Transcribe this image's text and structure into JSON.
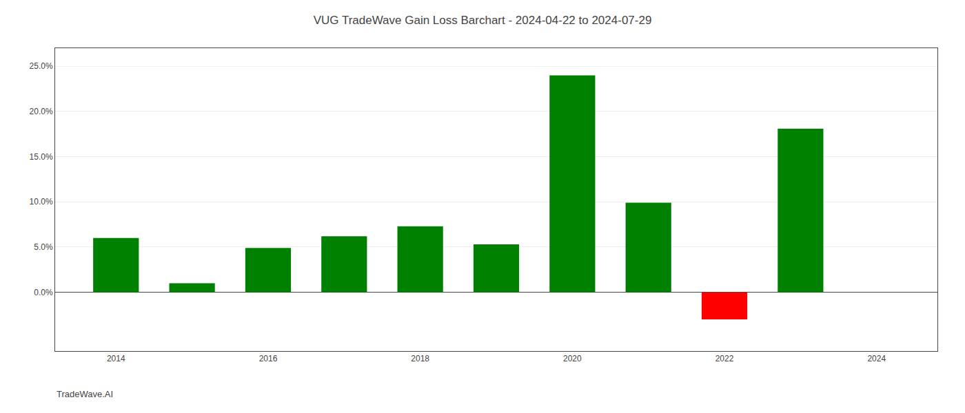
{
  "chart_data": {
    "type": "bar",
    "title": "VUG TradeWave Gain Loss Barchart - 2024-04-22 to 2024-07-29",
    "annotations": [
      "TradeWave.AI"
    ],
    "x": [
      2014,
      2015,
      2016,
      2017,
      2018,
      2019,
      2020,
      2021,
      2022,
      2023
    ],
    "values": [
      0.06,
      0.01,
      0.049,
      0.062,
      0.073,
      0.053,
      0.24,
      0.099,
      -0.03,
      0.181
    ],
    "colors": [
      "#008000",
      "#008000",
      "#008000",
      "#008000",
      "#008000",
      "#008000",
      "#008000",
      "#008000",
      "#ff0000",
      "#008000"
    ],
    "xlim": [
      2013.2,
      2024.8
    ],
    "xticks": [
      2014,
      2016,
      2018,
      2020,
      2022,
      2024
    ],
    "ylim": [
      -0.065,
      0.27
    ],
    "yticks": [
      {
        "value": 0.0,
        "label": "0.0%"
      },
      {
        "value": 0.05,
        "label": "5.0%"
      },
      {
        "value": 0.1,
        "label": "10.0%"
      },
      {
        "value": 0.15,
        "label": "15.0%"
      },
      {
        "value": 0.2,
        "label": "20.0%"
      },
      {
        "value": 0.25,
        "label": "25.0%"
      }
    ],
    "grid": true
  }
}
